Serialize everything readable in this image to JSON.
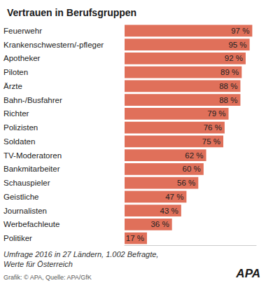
{
  "chart_data": {
    "type": "bar",
    "title": "Vertrauen in Berufsgruppen",
    "orientation": "horizontal",
    "categories": [
      "Feuerwehr",
      "Krankenschwestern/-pfleger",
      "Apotheker",
      "Piloten",
      "Ärzte",
      "Bahn-/Busfahrer",
      "Richter",
      "Polizisten",
      "Soldaten",
      "TV-Moderatoren",
      "Bankmitarbeiter",
      "Schauspieler",
      "Geistliche",
      "Journalisten",
      "Werbefachleute",
      "Politiker"
    ],
    "values": [
      97,
      95,
      92,
      89,
      88,
      88,
      79,
      76,
      75,
      62,
      60,
      56,
      47,
      43,
      36,
      17
    ],
    "value_labels": [
      "97 %",
      "95 %",
      "92 %",
      "89 %",
      "88 %",
      "88 %",
      "79 %",
      "76 %",
      "75 %",
      "62 %",
      "60 %",
      "56 %",
      "47 %",
      "43 %",
      "36 %",
      "17 %"
    ],
    "color": "#e0705a",
    "xlim": [
      0,
      100
    ],
    "grid": false,
    "data_labels": true,
    "tick_labels": "y",
    "annotations": [
      "Umfrage 2016 in 27 Ländern, 1.002 Befragte,",
      "Werte für Österreich",
      "Grafik: © APA, Quelle: APA/GfK",
      "APA"
    ]
  }
}
